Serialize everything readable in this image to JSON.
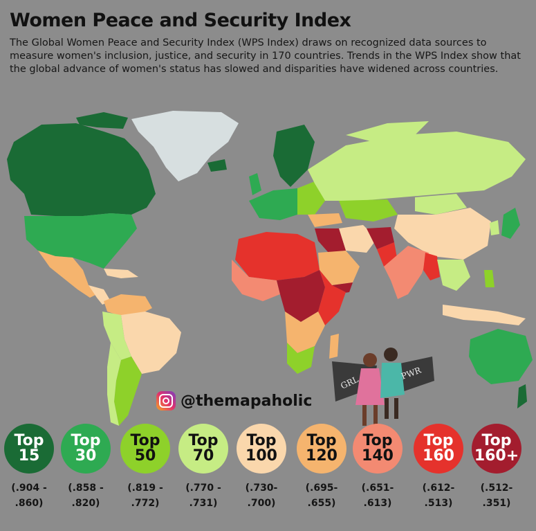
{
  "title": "Women Peace and Security Index",
  "description": "The Global Women Peace and Security Index (WPS Index) draws on recognized data sources to measure women's inclusion, justice, and security in 170 countries. Trends in the WPS Index show that the global advance of women's status has slowed and disparities have widened across countries.",
  "handle": "@themapaholic",
  "illustration_signs": [
    "GRL",
    "PWR"
  ],
  "legend": [
    {
      "top": "Top",
      "num": "15",
      "range1": "(.904 -",
      "range2": ".860)",
      "color": "#1a6b35",
      "text_color": "#ffffff"
    },
    {
      "top": "Top",
      "num": "30",
      "range1": "(.858 -",
      "range2": ".820)",
      "color": "#2eaa52",
      "text_color": "#ffffff"
    },
    {
      "top": "Top",
      "num": "50",
      "range1": "(.819 -",
      "range2": ".772)",
      "color": "#8ed12a",
      "text_color": "#111111"
    },
    {
      "top": "Top",
      "num": "70",
      "range1": "(.770 -",
      "range2": ".731)",
      "color": "#c6ec84",
      "text_color": "#111111"
    },
    {
      "top": "Top",
      "num": "100",
      "range1": "(.730-",
      "range2": ".700)",
      "color": "#fad7ac",
      "text_color": "#111111"
    },
    {
      "top": "Top",
      "num": "120",
      "range1": "(.695-",
      "range2": ".655)",
      "color": "#f5b46e",
      "text_color": "#111111"
    },
    {
      "top": "Top",
      "num": "140",
      "range1": "(.651-",
      "range2": ".613)",
      "color": "#f38a72",
      "text_color": "#111111"
    },
    {
      "top": "Top",
      "num": "160",
      "range1": "(.612-",
      "range2": ".513)",
      "color": "#e5322c",
      "text_color": "#ffffff"
    },
    {
      "top": "Top",
      "num": "160+",
      "range1": "(.512-",
      "range2": ".351)",
      "color": "#a31d2e",
      "text_color": "#ffffff"
    }
  ]
}
